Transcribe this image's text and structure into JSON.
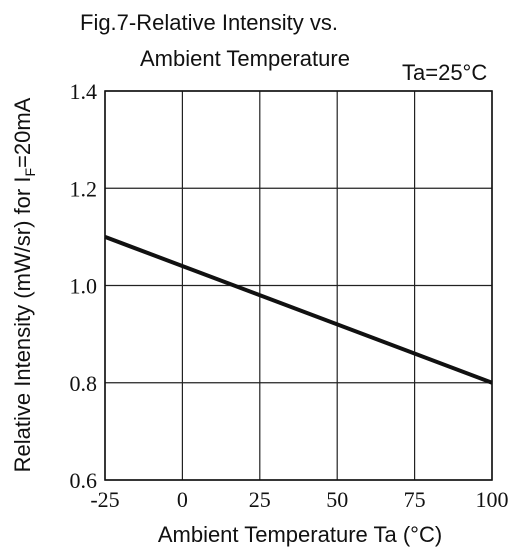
{
  "chart_data": {
    "type": "line",
    "title_line1": "Fig.7-Relative Intensity vs.",
    "title_line2": "Ambient Temperature",
    "condition": "Ta=25°C",
    "xlabel": "Ambient Temperature Ta (°C)",
    "ylabel": "Relative Intensity (mW/sr) for I",
    "ylabel_sub": "F",
    "ylabel_tail": "=20mA",
    "xlim": [
      -25,
      100
    ],
    "ylim": [
      0.6,
      1.4
    ],
    "xticks": [
      -25,
      0,
      25,
      50,
      75,
      100
    ],
    "xtick_labels": [
      "-25",
      "0",
      "25",
      "50",
      "75",
      "100"
    ],
    "yticks": [
      0.6,
      0.8,
      1.0,
      1.2,
      1.4
    ],
    "ytick_labels": [
      "0.6",
      "0.8",
      "1.0",
      "1.2",
      "1.4"
    ],
    "grid": true,
    "series": [
      {
        "x": [
          -25,
          100
        ],
        "y": [
          1.1,
          0.8
        ]
      }
    ]
  }
}
